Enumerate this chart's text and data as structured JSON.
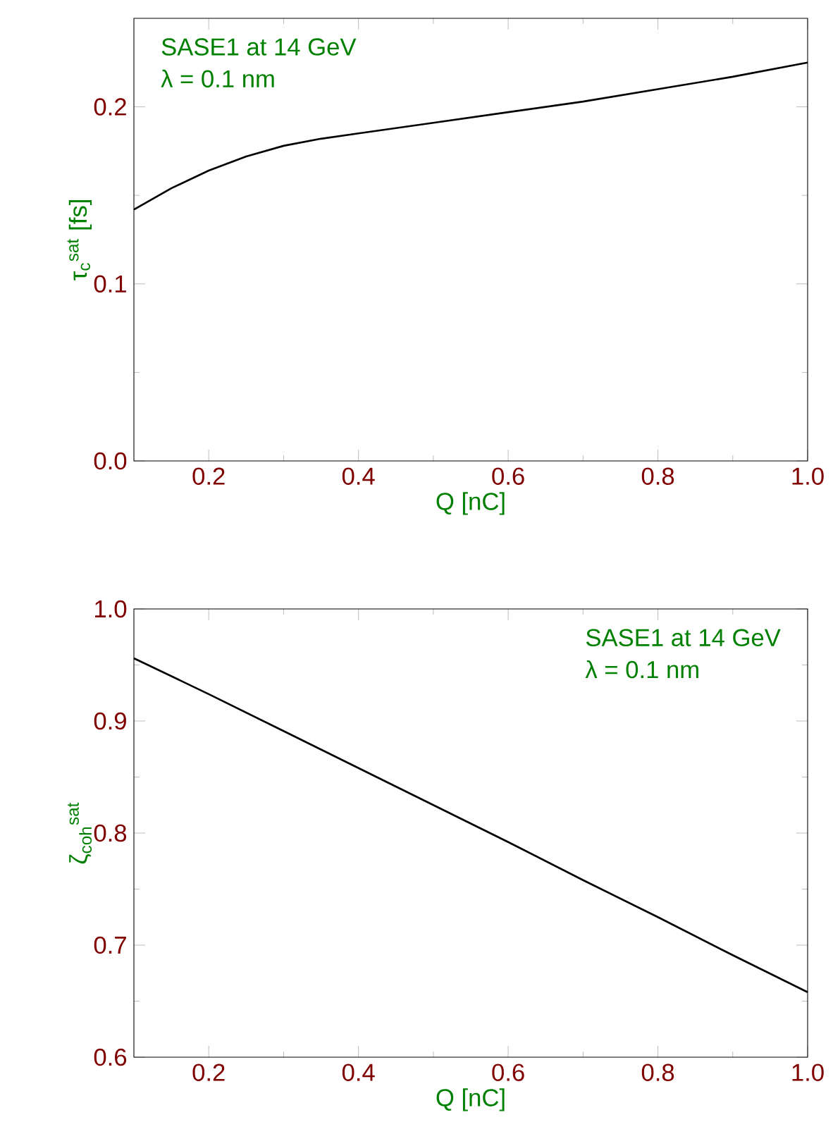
{
  "chart_data": [
    {
      "type": "line",
      "xlabel": "Q  [nC]",
      "ylabel": "τ$_{c}$$^{sat}$  [fs]",
      "annotations": [
        "SASE1 at 14 GeV",
        "λ = 0.1 nm"
      ],
      "x": [
        0.1,
        0.15,
        0.2,
        0.25,
        0.3,
        0.35,
        0.4,
        0.5,
        0.6,
        0.7,
        0.8,
        0.9,
        1.0
      ],
      "series": [
        {
          "color": "#000000",
          "values": [
            0.142,
            0.154,
            0.164,
            0.172,
            0.178,
            0.182,
            0.185,
            0.191,
            0.197,
            0.203,
            0.21,
            0.217,
            0.225
          ]
        }
      ],
      "xlim": [
        0.1,
        1.0
      ],
      "ylim": [
        0,
        0.25
      ],
      "xticks": [
        0.2,
        0.4,
        0.6,
        0.8,
        {
          "value": 1.0,
          "label": "1.0"
        }
      ],
      "yticks": [
        {
          "value": 0,
          "label": "0.0"
        },
        0.1,
        0.2
      ],
      "grid": false,
      "marker": "none",
      "line_style": "solid"
    },
    {
      "type": "line",
      "xlabel": "Q  [nC]",
      "ylabel": "ζ$_{coh}$$^{sat}$",
      "annotations": [
        "SASE1 at 14 GeV",
        "λ = 0.1 nm"
      ],
      "x": [
        0.1,
        0.2,
        0.3,
        0.4,
        0.5,
        0.6,
        0.7,
        0.8,
        0.9,
        1.0
      ],
      "series": [
        {
          "color": "#000000",
          "values": [
            0.956,
            0.924,
            0.891,
            0.858,
            0.825,
            0.792,
            0.758,
            0.725,
            0.691,
            0.658
          ]
        }
      ],
      "xlim": [
        0.1,
        1.0
      ],
      "ylim": [
        0.6,
        1.0
      ],
      "xticks": [
        0.2,
        0.4,
        0.6,
        0.8,
        {
          "value": 1.0,
          "label": "1.0"
        }
      ],
      "yticks": [
        0.6,
        0.7,
        0.8,
        0.9,
        {
          "value": 1.0,
          "label": "1.0"
        }
      ],
      "grid": false,
      "marker": "none",
      "line_style": "solid"
    }
  ]
}
